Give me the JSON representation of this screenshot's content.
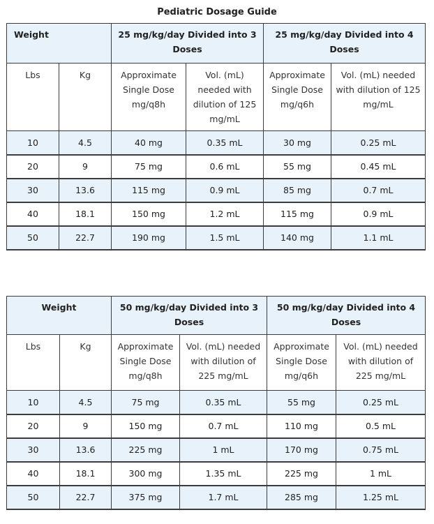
{
  "caption": "Pediatric Dosage Guide",
  "tables": [
    {
      "weight_label": "Weight",
      "group1": "25 mg/kg/day Divided into 3 Doses",
      "group2": "25 mg/kg/day Divided into 4 Doses",
      "sub": [
        "Lbs",
        "Kg",
        "Approximate Single Dose mg/q8h",
        "Vol. (mL) needed with dilution of 125 mg/mL",
        "Approximate Single Dose mg/q6h",
        "Vol. (mL) needed with dilution of 125 mg/mL"
      ],
      "rows": [
        [
          "10",
          "4.5",
          "40 mg",
          "0.35 mL",
          "30 mg",
          "0.25 mL"
        ],
        [
          "20",
          "9",
          "75 mg",
          "0.6 mL",
          "55 mg",
          "0.45 mL"
        ],
        [
          "30",
          "13.6",
          "115 mg",
          "0.9 mL",
          "85 mg",
          "0.7 mL"
        ],
        [
          "40",
          "18.1",
          "150 mg",
          "1.2 mL",
          "115 mg",
          "0.9 mL"
        ],
        [
          "50",
          "22.7",
          "190 mg",
          "1.5 mL",
          "140 mg",
          "1.1 mL"
        ]
      ]
    },
    {
      "weight_label": "Weight",
      "group1": "50 mg/kg/day Divided into 3 Doses",
      "group2": "50 mg/kg/day Divided into 4 Doses",
      "sub": [
        "Lbs",
        "Kg",
        "Approximate Single Dose mg/q8h",
        "Vol. (mL) needed with dilution of 225 mg/mL",
        "Approximate Single Dose mg/q6h",
        "Vol. (mL) needed with dilution of 225 mg/mL"
      ],
      "rows": [
        [
          "10",
          "4.5",
          "75 mg",
          "0.35 mL",
          "55 mg",
          "0.25 mL"
        ],
        [
          "20",
          "9",
          "150 mg",
          "0.7 mL",
          "110 mg",
          "0.5 mL"
        ],
        [
          "30",
          "13.6",
          "225 mg",
          "1 mL",
          "170 mg",
          "0.75 mL"
        ],
        [
          "40",
          "18.1",
          "300 mg",
          "1.35 mL",
          "225 mg",
          "1 mL"
        ],
        [
          "50",
          "22.7",
          "375 mg",
          "1.7 mL",
          "285 mg",
          "1.25 mL"
        ]
      ]
    }
  ]
}
